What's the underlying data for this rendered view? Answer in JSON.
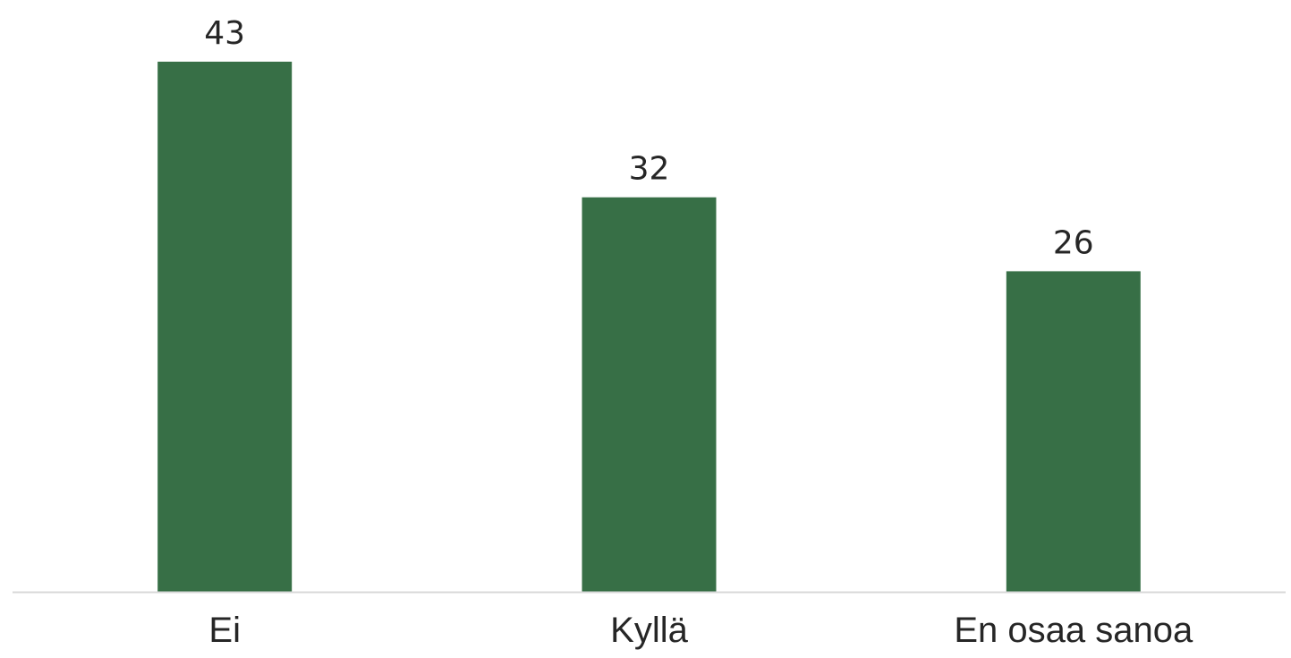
{
  "chart_data": {
    "type": "bar",
    "categories": [
      "Ei",
      "Kyllä",
      "En osaa sanoa"
    ],
    "values": [
      43,
      32,
      26
    ],
    "data_labels": [
      "43",
      "32",
      "26"
    ],
    "title": "",
    "xlabel": "",
    "ylabel": "",
    "ylim": [
      0,
      43
    ],
    "grid": false,
    "legend": "none",
    "colors": {
      "bar": "#376f46",
      "axis": "#d9d9d9",
      "text": "#262626"
    }
  }
}
